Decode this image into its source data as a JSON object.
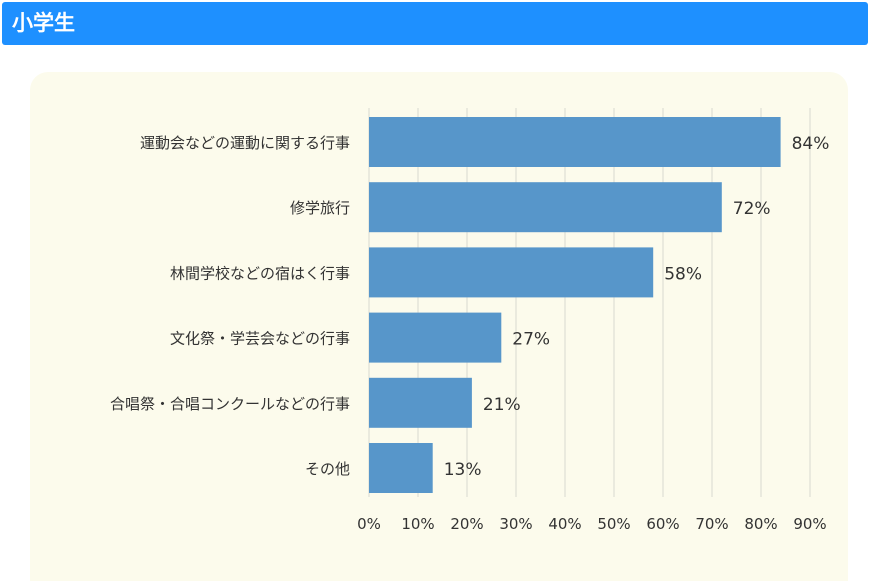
{
  "header": {
    "title": "小学生"
  },
  "colors": {
    "header": "#1e90ff",
    "bar": "#5796ca",
    "panel": "#fcfbec",
    "grid": "#d9d9d0"
  },
  "chart_data": {
    "type": "bar",
    "orientation": "horizontal",
    "categories": [
      "運動会などの運動に関する行事",
      "修学旅行",
      "林間学校などの宿はく行事",
      "文化祭・学芸会などの行事",
      "合唱祭・合唱コンクールなどの行事",
      "その他"
    ],
    "values": [
      84,
      72,
      58,
      27,
      21,
      13
    ],
    "value_labels": [
      "84%",
      "72%",
      "58%",
      "27%",
      "21%",
      "13%"
    ],
    "xlim": [
      0,
      90
    ],
    "ticks": [
      0,
      10,
      20,
      30,
      40,
      50,
      60,
      70,
      80,
      90
    ],
    "tick_labels": [
      "0%",
      "10%",
      "20%",
      "30%",
      "40%",
      "50%",
      "60%",
      "70%",
      "80%",
      "90%"
    ],
    "grid": true,
    "title": "",
    "xlabel": "",
    "ylabel": ""
  }
}
